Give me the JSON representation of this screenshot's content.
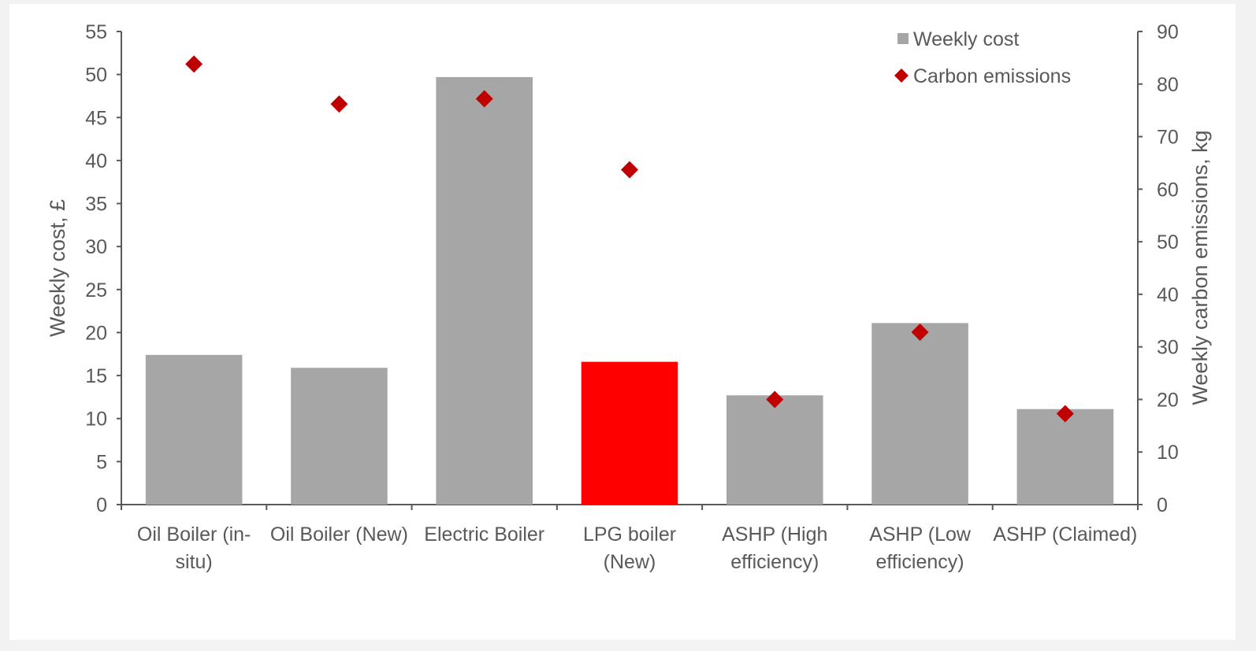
{
  "chart_data": {
    "type": "bar",
    "categories": [
      [
        "Oil Boiler (in-",
        "situ)"
      ],
      [
        "Oil Boiler (New)"
      ],
      [
        "Electric Boiler"
      ],
      [
        "LPG boiler",
        "(New)"
      ],
      [
        "ASHP (High",
        "efficiency)"
      ],
      [
        "ASHP (Low",
        "efficiency)"
      ],
      [
        "ASHP (Claimed)"
      ]
    ],
    "series": [
      {
        "name": "Weekly cost",
        "type": "bar",
        "axis": "left",
        "values": [
          17.4,
          15.9,
          49.7,
          16.6,
          12.7,
          21.1,
          11.1
        ],
        "colors": [
          "#a6a6a6",
          "#a6a6a6",
          "#a6a6a6",
          "#ff0000",
          "#a6a6a6",
          "#a6a6a6",
          "#a6a6a6"
        ]
      },
      {
        "name": "Carbon emissions",
        "type": "scatter",
        "axis": "right",
        "marker": "diamond",
        "color": "#c00000",
        "values": [
          83.8,
          76.2,
          77.2,
          63.7,
          20.0,
          32.8,
          17.3
        ]
      }
    ],
    "ylabel": "Weekly cost, £",
    "ylim": [
      0,
      55
    ],
    "yticks": [
      0,
      5,
      10,
      15,
      20,
      25,
      30,
      35,
      40,
      45,
      50,
      55
    ],
    "y2label": "Weekly carbon emissions, kg",
    "y2lim": [
      0,
      90
    ],
    "y2ticks": [
      0,
      10,
      20,
      30,
      40,
      50,
      60,
      70,
      80,
      90
    ],
    "grid": false,
    "legend_position": "top-right",
    "legend": [
      {
        "label": "Weekly cost",
        "symbol": "square",
        "color": "#a6a6a6"
      },
      {
        "label": "Carbon emissions",
        "symbol": "diamond",
        "color": "#c00000"
      }
    ]
  }
}
